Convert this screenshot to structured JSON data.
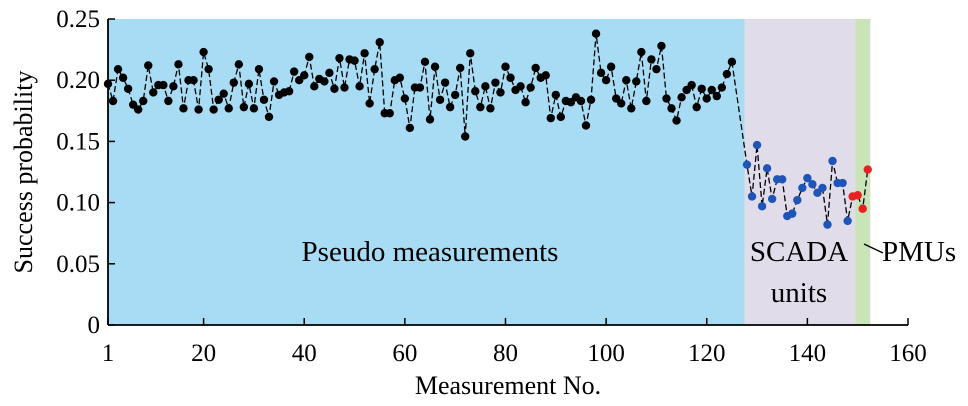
{
  "chart_data": {
    "type": "scatter",
    "xlabel": "Measurement No.",
    "ylabel": "Success probability",
    "xlim": [
      1,
      160
    ],
    "ylim": [
      0,
      0.25
    ],
    "xticks": [
      1,
      20,
      40,
      60,
      80,
      100,
      120,
      140,
      160
    ],
    "xtick_labels": [
      "1",
      "20",
      "40",
      "60",
      "80",
      "100",
      "120",
      "140",
      "160"
    ],
    "yticks": [
      0,
      0.05,
      0.1,
      0.15,
      0.2,
      0.25
    ],
    "ytick_labels": [
      "0",
      "0.05",
      "0.10",
      "0.15",
      "0.20",
      "0.25"
    ],
    "grid": false,
    "line_style": "dashed",
    "regions": [
      {
        "label": "Pseudo measurements",
        "x_start": 1,
        "x_end": 127.5,
        "color": "#a8dcf4"
      },
      {
        "label": "SCADA units",
        "line1": "SCADA",
        "line2": "units",
        "x_start": 127.5,
        "x_end": 149.5,
        "color": "#e0dcea"
      },
      {
        "label": "PMUs",
        "x_start": 149.5,
        "x_end": 152.5,
        "color": "#c8e4b8"
      }
    ],
    "series": [
      {
        "color": "#000000",
        "x_start": 1,
        "values": [
          0.197,
          0.183,
          0.209,
          0.202,
          0.193,
          0.18,
          0.176,
          0.183,
          0.212,
          0.19,
          0.196,
          0.196,
          0.183,
          0.195,
          0.213,
          0.177,
          0.2,
          0.2,
          0.176,
          0.223,
          0.209,
          0.176,
          0.184,
          0.189,
          0.177,
          0.198,
          0.213,
          0.178,
          0.197,
          0.177,
          0.209,
          0.184,
          0.17,
          0.199,
          0.188,
          0.19,
          0.191,
          0.207,
          0.2,
          0.204,
          0.219,
          0.195,
          0.201,
          0.199,
          0.206,
          0.193,
          0.218,
          0.194,
          0.217,
          0.216,
          0.195,
          0.222,
          0.181,
          0.209,
          0.231,
          0.173,
          0.173,
          0.2,
          0.202,
          0.185,
          0.161,
          0.194,
          0.194,
          0.215,
          0.168,
          0.211,
          0.184,
          0.198,
          0.178,
          0.188,
          0.21,
          0.154,
          0.222,
          0.191,
          0.178,
          0.195,
          0.177,
          0.198,
          0.19,
          0.211,
          0.202,
          0.192,
          0.195,
          0.182,
          0.194,
          0.21,
          0.202,
          0.204,
          0.169,
          0.188,
          0.17,
          0.183,
          0.182,
          0.186,
          0.183,
          0.163,
          0.184,
          0.238,
          0.206,
          0.2,
          0.211,
          0.185,
          0.181,
          0.2,
          0.177,
          0.199,
          0.223,
          0.183,
          0.217,
          0.209,
          0.228,
          0.185,
          0.177,
          0.167,
          0.186,
          0.192,
          0.196,
          0.178,
          0.193,
          0.185,
          0.192,
          0.187,
          0.194,
          0.205,
          0.215
        ]
      },
      {
        "color": "#1f55b8",
        "x_start": 128,
        "values": [
          0.131,
          0.105,
          0.147,
          0.097,
          0.128,
          0.103,
          0.119,
          0.119,
          0.089,
          0.091,
          0.102,
          0.112,
          0.12,
          0.115,
          0.108,
          0.112,
          0.082,
          0.134,
          0.116,
          0.116,
          0.085
        ]
      },
      {
        "color": "#e82020",
        "x_start": 149,
        "values": [
          0.105,
          0.106,
          0.095,
          0.127
        ]
      }
    ]
  }
}
